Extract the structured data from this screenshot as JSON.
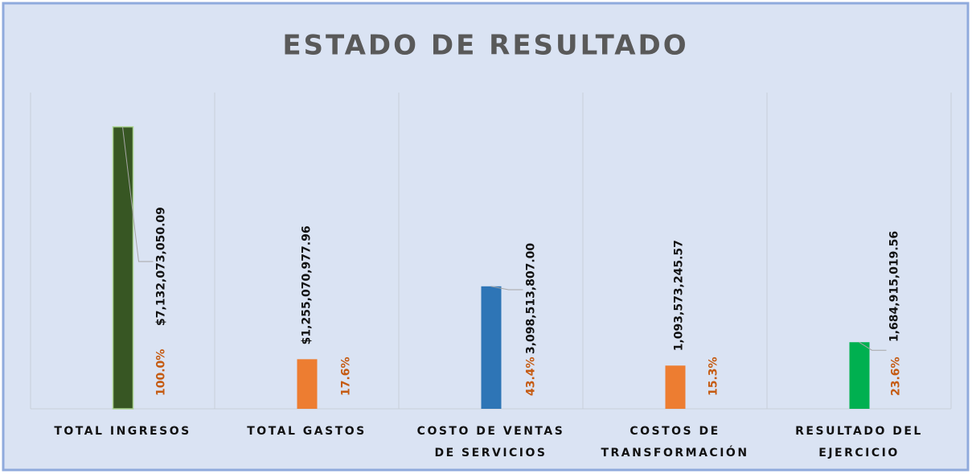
{
  "chart_data": {
    "type": "bar",
    "title": "ESTADO DE RESULTADO",
    "categories": [
      [
        "TOTAL INGRESOS"
      ],
      [
        "TOTAL GASTOS"
      ],
      [
        "COSTO DE VENTAS",
        "DE SERVICIOS"
      ],
      [
        "COSTOS DE",
        "TRANSFORMACIÓN"
      ],
      [
        "RESULTADO DEL",
        "EJERCICIO"
      ]
    ],
    "values": [
      7132073050.09,
      1255070977.96,
      3098513807.0,
      1093573245.57,
      1684915019.56
    ],
    "value_labels": [
      "$7,132,073,050.09",
      "$1,255,070,977.96",
      "3,098,513,807.00",
      "1,093,573,245.57",
      "1,684,915,019.56"
    ],
    "percent_labels": [
      "100.0%",
      "17.6%",
      "43.4%",
      "15.3%",
      "23.6%"
    ],
    "colors": [
      "#375623",
      "#ed7d31",
      "#2e75b6",
      "#ed7d31",
      "#00b050"
    ],
    "ylim": [
      0,
      8000000000
    ]
  }
}
